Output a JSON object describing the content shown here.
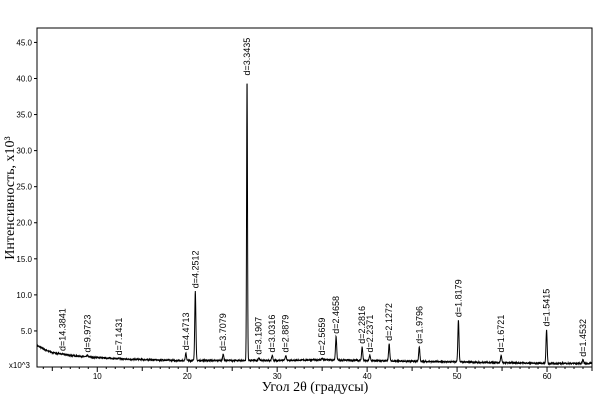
{
  "chart_data": {
    "type": "line",
    "title": "",
    "xlabel": "Угол 2θ (градусы)",
    "ylabel": "Интенсивность, x10³",
    "y_multiplier_label": "x10^3",
    "xlim": [
      3.3,
      65
    ],
    "ylim": [
      0,
      47
    ],
    "x_ticks": [
      10,
      20,
      30,
      40,
      50,
      60
    ],
    "y_ticks": [
      {
        "value": 5,
        "label": "5.0"
      },
      {
        "value": 10,
        "label": "10.0"
      },
      {
        "value": 15,
        "label": "15.0"
      },
      {
        "value": 20,
        "label": "20.0"
      },
      {
        "value": 25,
        "label": "25.0"
      },
      {
        "value": 30,
        "label": "30.0"
      },
      {
        "value": 35,
        "label": "35.0"
      },
      {
        "value": 40,
        "label": "40.0"
      },
      {
        "value": 45,
        "label": "45.0"
      }
    ],
    "grid": false,
    "line_color": "#000000",
    "background": [
      [
        3.3,
        3.0
      ],
      [
        4.0,
        2.5
      ],
      [
        5.0,
        2.0
      ],
      [
        7.0,
        1.6
      ],
      [
        10.0,
        1.3
      ],
      [
        13.0,
        1.1
      ],
      [
        16.0,
        1.0
      ],
      [
        19.0,
        0.9
      ],
      [
        25.0,
        0.9
      ],
      [
        30.0,
        0.9
      ],
      [
        35.0,
        1.0
      ],
      [
        40.0,
        0.9
      ],
      [
        45.0,
        0.8
      ],
      [
        50.0,
        0.7
      ],
      [
        55.0,
        0.6
      ],
      [
        60.0,
        0.5
      ],
      [
        65.0,
        0.5
      ]
    ],
    "peaks": [
      {
        "x": 6.15,
        "y": 1.8,
        "label": "d=14.3841"
      },
      {
        "x": 8.9,
        "y": 1.6,
        "label": "d=9.9723"
      },
      {
        "x": 12.4,
        "y": 1.2,
        "label": "d=7.1431"
      },
      {
        "x": 19.85,
        "y": 1.9,
        "label": "d=4.4713"
      },
      {
        "x": 20.9,
        "y": 10.5,
        "label": "d=4.2512"
      },
      {
        "x": 24.0,
        "y": 1.8,
        "label": "d=3.7079"
      },
      {
        "x": 26.65,
        "y": 40.0,
        "label": "d=3.3435"
      },
      {
        "x": 27.95,
        "y": 1.3,
        "label": "d=3.1907"
      },
      {
        "x": 29.45,
        "y": 1.6,
        "label": "d=3.0316"
      },
      {
        "x": 30.95,
        "y": 1.6,
        "label": "d=2.8879"
      },
      {
        "x": 35.0,
        "y": 1.2,
        "label": "d=2.5659"
      },
      {
        "x": 36.55,
        "y": 4.2,
        "label": "d=2.4658"
      },
      {
        "x": 39.45,
        "y": 2.8,
        "label": "d=2.2816"
      },
      {
        "x": 40.3,
        "y": 1.6,
        "label": "d=2.2371"
      },
      {
        "x": 42.45,
        "y": 3.2,
        "label": "d=2.1272"
      },
      {
        "x": 45.8,
        "y": 2.8,
        "label": "d=1.9796"
      },
      {
        "x": 50.15,
        "y": 6.5,
        "label": "d=1.8179"
      },
      {
        "x": 54.9,
        "y": 1.6,
        "label": "d=1.6721"
      },
      {
        "x": 59.95,
        "y": 5.2,
        "label": "d=1.5415"
      },
      {
        "x": 64.0,
        "y": 1.0,
        "label": "d=1.4532"
      }
    ]
  }
}
